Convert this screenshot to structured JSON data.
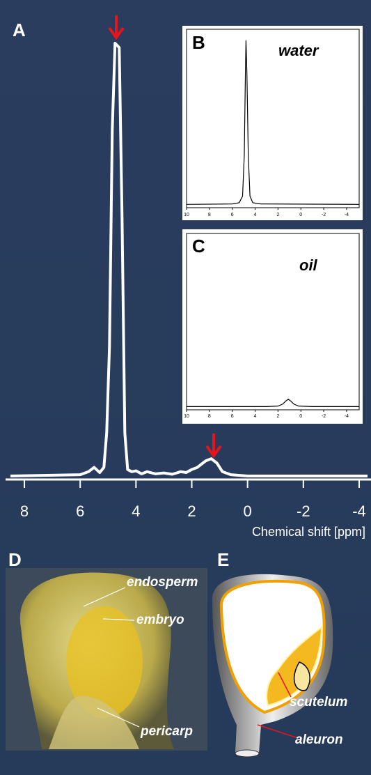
{
  "chart_data": [
    {
      "type": "line",
      "panel_label": "A",
      "x_label": "Chemical shift [ppm]",
      "color": "#ffffff",
      "x": [
        8.5,
        6,
        5.7,
        5.5,
        5.3,
        5.15,
        5.05,
        4.95,
        4.85,
        4.75,
        4.6,
        4.5,
        4.4,
        4.3,
        4.15,
        4.0,
        3.8,
        3.6,
        3.3,
        3.0,
        2.7,
        2.4,
        2.2,
        2.0,
        1.8,
        1.5,
        1.3,
        1.1,
        0.9,
        0.6,
        0,
        -4.3
      ],
      "values": [
        0,
        0.3,
        1,
        2,
        0.8,
        2,
        10,
        30,
        80,
        100,
        99,
        60,
        10,
        1.5,
        1,
        1.2,
        0.5,
        1,
        0.5,
        0.7,
        0.4,
        1,
        0.8,
        1.5,
        2,
        3.5,
        4,
        3,
        1,
        0.3,
        0,
        0
      ],
      "xlim": [
        8.5,
        -4.3
      ],
      "xticks": [
        8,
        6,
        4,
        2,
        0,
        -2,
        -4
      ],
      "ylim": [
        0,
        100
      ]
    },
    {
      "type": "line",
      "panel_label": "B",
      "title": "water",
      "color": "#000000",
      "x": [
        10,
        6,
        5.4,
        5.1,
        4.95,
        4.85,
        4.8,
        4.72,
        4.6,
        4.45,
        4.2,
        3.5,
        -5.1
      ],
      "values": [
        0,
        0.3,
        1,
        5,
        30,
        80,
        100,
        80,
        30,
        5,
        1,
        0.3,
        0
      ],
      "xlim": [
        10,
        -5.1
      ],
      "xticks": [
        10,
        8,
        6,
        4,
        2,
        0,
        -2,
        -4
      ],
      "ylim": [
        -2,
        107
      ]
    },
    {
      "type": "line",
      "panel_label": "C",
      "title": "oil",
      "color": "#000000",
      "x": [
        10,
        3,
        2,
        1.6,
        1.3,
        1.1,
        0.9,
        0.6,
        0.2,
        -1,
        -5.1
      ],
      "values": [
        0,
        0,
        0.3,
        1.5,
        3.5,
        4.5,
        3.5,
        1.5,
        0.3,
        0,
        0
      ],
      "xlim": [
        10,
        -5.1
      ],
      "xticks": [
        10,
        8,
        6,
        4,
        2,
        0,
        -2,
        -4
      ],
      "ylim": [
        -2,
        107
      ]
    }
  ],
  "panels": {
    "D": {
      "label": "D",
      "annotations": [
        "endosperm",
        "embryo",
        "pericarp"
      ]
    },
    "E": {
      "label": "E",
      "annotations": [
        "scutelum",
        "aleuron"
      ]
    }
  }
}
